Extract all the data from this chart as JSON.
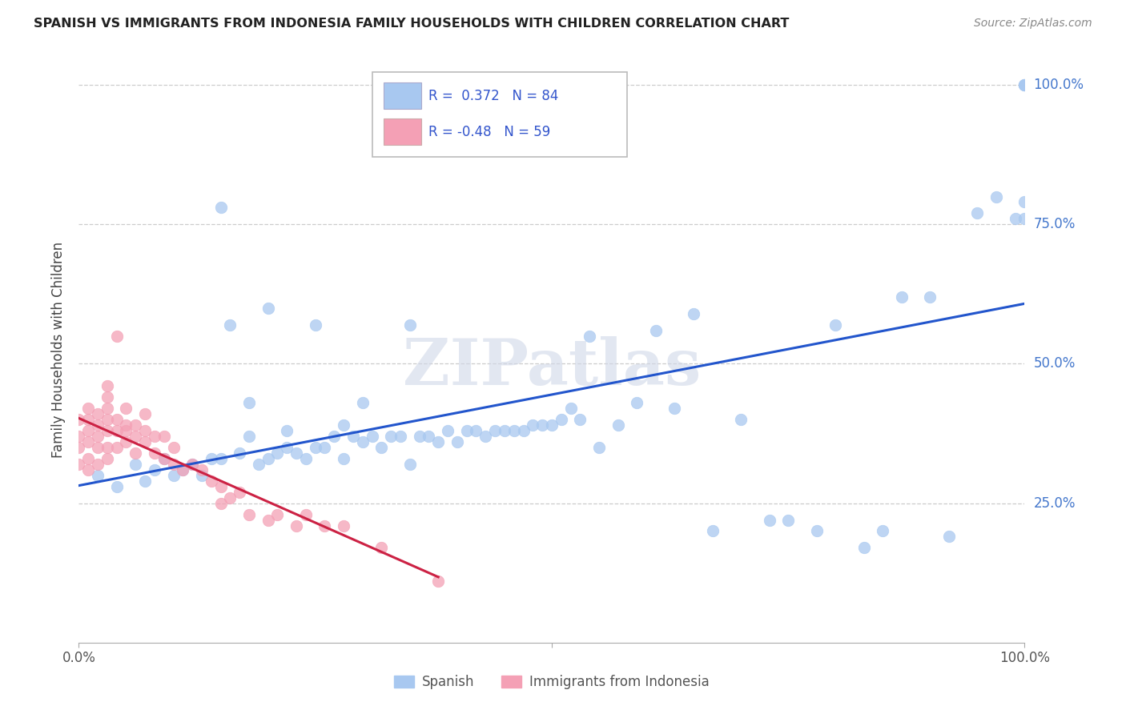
{
  "title": "SPANISH VS IMMIGRANTS FROM INDONESIA FAMILY HOUSEHOLDS WITH CHILDREN CORRELATION CHART",
  "source": "Source: ZipAtlas.com",
  "ylabel": "Family Households with Children",
  "ytick_labels": [
    "25.0%",
    "50.0%",
    "75.0%",
    "100.0%"
  ],
  "ytick_values": [
    0.25,
    0.5,
    0.75,
    1.0
  ],
  "xlim": [
    0.0,
    1.0
  ],
  "ylim": [
    0.0,
    1.05
  ],
  "blue_R": 0.372,
  "blue_N": 84,
  "pink_R": -0.48,
  "pink_N": 59,
  "blue_color": "#a8c8f0",
  "pink_color": "#f4a0b5",
  "blue_line_color": "#2255cc",
  "pink_line_color": "#cc2244",
  "watermark_text": "ZIPatlas",
  "legend_label_blue": "Spanish",
  "legend_label_pink": "Immigrants from Indonesia",
  "blue_scatter_x": [
    0.02,
    0.04,
    0.06,
    0.07,
    0.08,
    0.09,
    0.1,
    0.11,
    0.12,
    0.13,
    0.14,
    0.15,
    0.16,
    0.17,
    0.18,
    0.19,
    0.2,
    0.21,
    0.22,
    0.23,
    0.24,
    0.25,
    0.26,
    0.27,
    0.28,
    0.29,
    0.3,
    0.31,
    0.32,
    0.33,
    0.34,
    0.35,
    0.36,
    0.37,
    0.38,
    0.39,
    0.4,
    0.41,
    0.42,
    0.43,
    0.44,
    0.45,
    0.46,
    0.47,
    0.48,
    0.49,
    0.5,
    0.51,
    0.52,
    0.53,
    0.54,
    0.55,
    0.57,
    0.59,
    0.61,
    0.63,
    0.65,
    0.67,
    0.7,
    0.73,
    0.75,
    0.78,
    0.8,
    0.83,
    0.85,
    0.87,
    0.9,
    0.92,
    0.95,
    0.97,
    0.99,
    1.0,
    1.0,
    1.0,
    1.0,
    1.0,
    0.2,
    0.3,
    0.25,
    0.35,
    0.15,
    0.18,
    0.22,
    0.28
  ],
  "blue_scatter_y": [
    0.3,
    0.28,
    0.32,
    0.29,
    0.31,
    0.33,
    0.3,
    0.31,
    0.32,
    0.3,
    0.33,
    0.78,
    0.57,
    0.34,
    0.43,
    0.32,
    0.33,
    0.34,
    0.35,
    0.34,
    0.33,
    0.35,
    0.35,
    0.37,
    0.33,
    0.37,
    0.36,
    0.37,
    0.35,
    0.37,
    0.37,
    0.32,
    0.37,
    0.37,
    0.36,
    0.38,
    0.36,
    0.38,
    0.38,
    0.37,
    0.38,
    0.38,
    0.38,
    0.38,
    0.39,
    0.39,
    0.39,
    0.4,
    0.42,
    0.4,
    0.55,
    0.35,
    0.39,
    0.43,
    0.56,
    0.42,
    0.59,
    0.2,
    0.4,
    0.22,
    0.22,
    0.2,
    0.57,
    0.17,
    0.2,
    0.62,
    0.62,
    0.19,
    0.77,
    0.8,
    0.76,
    1.0,
    0.76,
    0.79,
    1.0,
    1.0,
    0.6,
    0.43,
    0.57,
    0.57,
    0.33,
    0.37,
    0.38,
    0.39
  ],
  "pink_scatter_x": [
    0.0,
    0.0,
    0.0,
    0.0,
    0.01,
    0.01,
    0.01,
    0.01,
    0.01,
    0.01,
    0.02,
    0.02,
    0.02,
    0.02,
    0.02,
    0.03,
    0.03,
    0.03,
    0.03,
    0.03,
    0.03,
    0.03,
    0.04,
    0.04,
    0.04,
    0.04,
    0.05,
    0.05,
    0.05,
    0.05,
    0.06,
    0.06,
    0.06,
    0.07,
    0.07,
    0.07,
    0.08,
    0.08,
    0.09,
    0.09,
    0.1,
    0.1,
    0.11,
    0.12,
    0.13,
    0.14,
    0.15,
    0.15,
    0.16,
    0.17,
    0.18,
    0.2,
    0.21,
    0.23,
    0.24,
    0.26,
    0.28,
    0.32,
    0.38
  ],
  "pink_scatter_y": [
    0.32,
    0.35,
    0.37,
    0.4,
    0.31,
    0.33,
    0.36,
    0.38,
    0.4,
    0.42,
    0.32,
    0.35,
    0.37,
    0.39,
    0.41,
    0.33,
    0.35,
    0.38,
    0.4,
    0.42,
    0.44,
    0.46,
    0.35,
    0.38,
    0.4,
    0.55,
    0.36,
    0.38,
    0.39,
    0.42,
    0.34,
    0.37,
    0.39,
    0.36,
    0.38,
    0.41,
    0.34,
    0.37,
    0.33,
    0.37,
    0.32,
    0.35,
    0.31,
    0.32,
    0.31,
    0.29,
    0.25,
    0.28,
    0.26,
    0.27,
    0.23,
    0.22,
    0.23,
    0.21,
    0.23,
    0.21,
    0.21,
    0.17,
    0.11
  ]
}
